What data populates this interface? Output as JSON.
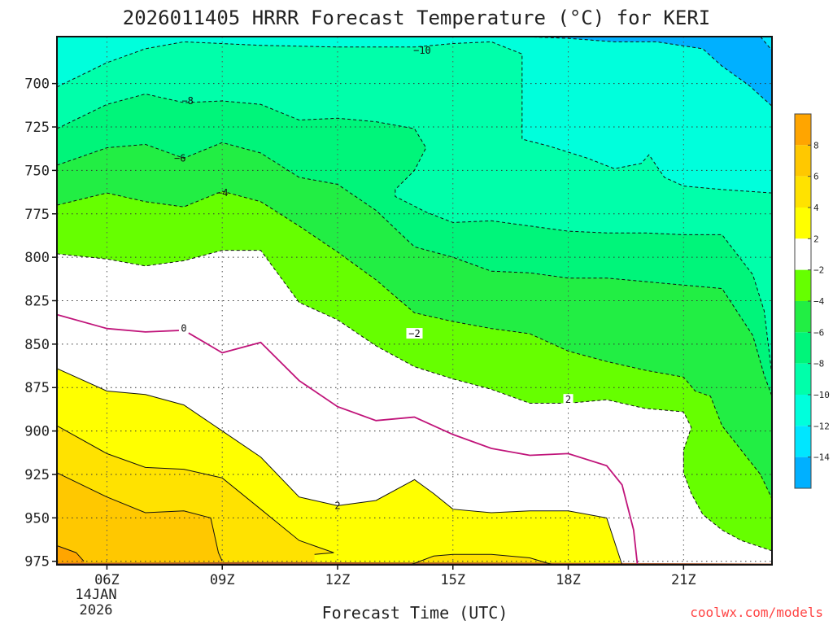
{
  "chart_data": {
    "type": "contour",
    "title": "2026011405 HRRR Forecast Temperature (°C) for KERI",
    "xlabel": "Forecast Time (UTC)",
    "ylabel": "",
    "credit": "coolwx.com/models",
    "x_axis": {
      "range_hours_utc": [
        4.7,
        23.3
      ],
      "ticks": [
        {
          "hour": 6,
          "label": "06Z"
        },
        {
          "hour": 9,
          "label": "09Z"
        },
        {
          "hour": 12,
          "label": "12Z"
        },
        {
          "hour": 15,
          "label": "15Z"
        },
        {
          "hour": 18,
          "label": "18Z"
        },
        {
          "hour": 21,
          "label": "21Z"
        }
      ],
      "date_labels": [
        "14JAN",
        "2026"
      ]
    },
    "y_axis": {
      "label": "",
      "inverted": true,
      "range_hpa": [
        977,
        673
      ],
      "ticks": [
        700,
        725,
        750,
        775,
        800,
        825,
        850,
        875,
        900,
        925,
        950,
        975
      ]
    },
    "grid": true,
    "ground_color": "#a0522d",
    "colorbar": {
      "position": "right",
      "bins": [
        {
          "min": -16,
          "max": -14,
          "color": "#00b0ff"
        },
        {
          "min": -14,
          "max": -12,
          "color": "#00e6ff"
        },
        {
          "min": -12,
          "max": -10,
          "color": "#00ffdc"
        },
        {
          "min": -10,
          "max": -8,
          "color": "#00ffaa"
        },
        {
          "min": -8,
          "max": -6,
          "color": "#00f57a"
        },
        {
          "min": -6,
          "max": -4,
          "color": "#22ee44"
        },
        {
          "min": -4,
          "max": -2,
          "color": "#66ff00"
        },
        {
          "min": -2,
          "max": 2,
          "color": "#ffffff"
        },
        {
          "min": 2,
          "max": 4,
          "color": "#ffff00"
        },
        {
          "min": 4,
          "max": 6,
          "color": "#ffe200"
        },
        {
          "min": 6,
          "max": 8,
          "color": "#ffc800"
        },
        {
          "min": 8,
          "max": 10,
          "color": "#ffa500"
        }
      ],
      "tick_labels": [
        "8",
        "6",
        "4",
        "2",
        "−2",
        "−4",
        "−6",
        "−8",
        "−10",
        "−12",
        "−14"
      ]
    },
    "contours": [
      {
        "level": -10,
        "label": "−10",
        "color": "#111111",
        "style": "dashed",
        "label_at": {
          "hour": 14.2,
          "hpa": 681
        },
        "points": [
          [
            4.7,
            702
          ],
          [
            6,
            688
          ],
          [
            7,
            680
          ],
          [
            8,
            676
          ],
          [
            10,
            678
          ],
          [
            12,
            679
          ],
          [
            14,
            679
          ],
          [
            15,
            677
          ],
          [
            16,
            676
          ],
          [
            16.8,
            683
          ],
          [
            16.8,
            732
          ],
          [
            17.5,
            736
          ],
          [
            18.5,
            743
          ],
          [
            19.2,
            749
          ],
          [
            19.9,
            746
          ],
          [
            20.1,
            741
          ],
          [
            20.5,
            754
          ],
          [
            21,
            759
          ],
          [
            22,
            761
          ],
          [
            23.3,
            763
          ]
        ]
      },
      {
        "level": -14,
        "label": "",
        "color": "#111111",
        "style": "dashed",
        "label_at": null,
        "points": [
          [
            16.8,
            673
          ],
          [
            18,
            674
          ],
          [
            19.2,
            676
          ],
          [
            20.3,
            676
          ],
          [
            21.5,
            680
          ],
          [
            22,
            690
          ],
          [
            22.7,
            701
          ],
          [
            23.3,
            713
          ]
        ]
      },
      {
        "level": -12,
        "label": "",
        "color": "#111111",
        "style": "dashed",
        "label_at": null,
        "points": [
          [
            23,
            673
          ],
          [
            23.3,
            681
          ]
        ]
      },
      {
        "level": -8,
        "label": "−8",
        "color": "#111111",
        "style": "dashed",
        "label_at": {
          "hour": 8.1,
          "hpa": 710
        },
        "points": [
          [
            4.7,
            726
          ],
          [
            6,
            712
          ],
          [
            7,
            706
          ],
          [
            8,
            711
          ],
          [
            9,
            710
          ],
          [
            10,
            712
          ],
          [
            11,
            721
          ],
          [
            12,
            720
          ],
          [
            13,
            722
          ],
          [
            14,
            726
          ],
          [
            14.3,
            737
          ],
          [
            14,
            750
          ],
          [
            13.5,
            761
          ],
          [
            13.5,
            765
          ],
          [
            14.3,
            774
          ],
          [
            15,
            780
          ],
          [
            16,
            779
          ],
          [
            17,
            782
          ],
          [
            18,
            785
          ],
          [
            19,
            786
          ],
          [
            20,
            786
          ],
          [
            21,
            787
          ],
          [
            22,
            787
          ],
          [
            22.8,
            810
          ],
          [
            23.1,
            831
          ],
          [
            23.3,
            868
          ]
        ]
      },
      {
        "level": -6,
        "label": "−6",
        "color": "#111111",
        "style": "dashed",
        "label_at": {
          "hour": 7.9,
          "hpa": 743
        },
        "points": [
          [
            4.7,
            747
          ],
          [
            6,
            737
          ],
          [
            7,
            735
          ],
          [
            8,
            743
          ],
          [
            9,
            734
          ],
          [
            10,
            740
          ],
          [
            11,
            754
          ],
          [
            12,
            758
          ],
          [
            13,
            773
          ],
          [
            14,
            794
          ],
          [
            15,
            800
          ],
          [
            16,
            808
          ],
          [
            17,
            809
          ],
          [
            18,
            812
          ],
          [
            19,
            812
          ],
          [
            20,
            814
          ],
          [
            21,
            816
          ],
          [
            22,
            818
          ],
          [
            22.8,
            845
          ],
          [
            23.1,
            868
          ],
          [
            23.3,
            880
          ]
        ]
      },
      {
        "level": -4,
        "label": "−4",
        "color": "#111111",
        "style": "dashed",
        "label_at": {
          "hour": 9,
          "hpa": 763
        },
        "points": [
          [
            4.7,
            770
          ],
          [
            6,
            763
          ],
          [
            7,
            768
          ],
          [
            8,
            771
          ],
          [
            9,
            762
          ],
          [
            10,
            768
          ],
          [
            11,
            782
          ],
          [
            12,
            797
          ],
          [
            13,
            813
          ],
          [
            14,
            832
          ],
          [
            15,
            837
          ],
          [
            16,
            841
          ],
          [
            17,
            844
          ],
          [
            18,
            854
          ],
          [
            19,
            860
          ],
          [
            20,
            865
          ],
          [
            21,
            869
          ],
          [
            21.3,
            877
          ],
          [
            21.7,
            880
          ],
          [
            22,
            897
          ],
          [
            22.5,
            911
          ],
          [
            23,
            925
          ],
          [
            23.3,
            939
          ]
        ]
      },
      {
        "level": -2,
        "label": "−2",
        "color": "#111111",
        "style": "dashed",
        "label_at": {
          "hour": 14,
          "hpa": 844
        },
        "points": [
          [
            4.7,
            798
          ],
          [
            6,
            801
          ],
          [
            7,
            805
          ],
          [
            8,
            802
          ],
          [
            9,
            796
          ],
          [
            10,
            796
          ],
          [
            11,
            826
          ],
          [
            12,
            836
          ],
          [
            13,
            851
          ],
          [
            14,
            863
          ],
          [
            15,
            870
          ],
          [
            16,
            876
          ],
          [
            17,
            884
          ],
          [
            18,
            884
          ],
          [
            19,
            882
          ],
          [
            20,
            887
          ],
          [
            21,
            889
          ],
          [
            21.2,
            898
          ],
          [
            21,
            911
          ],
          [
            21,
            924
          ],
          [
            21.2,
            936
          ],
          [
            21.5,
            948
          ],
          [
            22,
            957
          ],
          [
            22.5,
            963
          ],
          [
            23.3,
            969
          ]
        ]
      },
      {
        "level": 2,
        "label": "2",
        "color": "#111111",
        "style": "solid",
        "label_at": {
          "hour": 18,
          "hpa": 882
        },
        "points": [
          [
            23.3,
            977
          ]
        ]
      },
      {
        "level": 0,
        "label": "0",
        "color": "#c0147a",
        "style": "solid",
        "label_at": {
          "hour": 8,
          "hpa": 841
        },
        "points": [
          [
            4.7,
            833
          ],
          [
            6,
            841
          ],
          [
            7,
            843
          ],
          [
            8,
            842
          ],
          [
            9,
            855
          ],
          [
            10,
            849
          ],
          [
            11,
            871
          ],
          [
            12,
            886
          ],
          [
            13,
            894
          ],
          [
            14,
            892
          ],
          [
            15,
            902
          ],
          [
            16,
            910
          ],
          [
            17,
            914
          ],
          [
            18,
            913
          ],
          [
            19,
            920
          ],
          [
            19.4,
            931
          ],
          [
            19.7,
            957
          ],
          [
            19.8,
            977
          ]
        ]
      },
      {
        "level": 2,
        "label": "2",
        "color": "#111111",
        "style": "solid",
        "label_at": {
          "hour": 12,
          "hpa": 943
        },
        "points": [
          [
            4.7,
            864
          ],
          [
            6,
            877
          ],
          [
            7,
            879
          ],
          [
            8,
            885
          ],
          [
            9,
            900
          ],
          [
            10,
            915
          ],
          [
            11,
            938
          ],
          [
            12,
            943
          ],
          [
            13,
            940
          ],
          [
            14,
            928
          ],
          [
            14.5,
            936
          ],
          [
            15,
            945
          ],
          [
            16,
            947
          ],
          [
            17,
            946
          ],
          [
            18,
            946
          ],
          [
            19,
            950
          ],
          [
            19.4,
            977
          ]
        ]
      },
      {
        "level": 4,
        "label": "",
        "color": "#111111",
        "style": "solid",
        "label_at": null,
        "points": [
          [
            4.7,
            897
          ],
          [
            6,
            913
          ],
          [
            7,
            921
          ],
          [
            8,
            922
          ],
          [
            9,
            927
          ],
          [
            10,
            945
          ],
          [
            11,
            963
          ],
          [
            11.9,
            970
          ],
          [
            11.4,
            971
          ]
        ]
      },
      {
        "level": 6,
        "label": "",
        "color": "#111111",
        "style": "solid",
        "label_at": null,
        "points": [
          [
            4.7,
            924
          ],
          [
            6,
            938
          ],
          [
            7,
            947
          ],
          [
            8,
            946
          ],
          [
            8.7,
            950
          ],
          [
            8.9,
            970
          ],
          [
            9,
            975
          ]
        ]
      },
      {
        "level": 8,
        "label": "",
        "color": "#111111",
        "style": "solid",
        "label_at": null,
        "points": [
          [
            4.7,
            966
          ],
          [
            5.2,
            970
          ],
          [
            5.4,
            975
          ]
        ]
      },
      {
        "level": 4,
        "label": "",
        "color": "#111111",
        "style": "solid",
        "label_at": null,
        "points": [
          [
            13.9,
            977
          ],
          [
            14.5,
            972
          ],
          [
            15,
            971
          ],
          [
            16,
            971
          ],
          [
            17,
            973
          ],
          [
            17.6,
            977
          ]
        ]
      }
    ],
    "fill_regions": [
      {
        "bin_index": 0,
        "points": [
          [
            16.8,
            673
          ],
          [
            18,
            674
          ],
          [
            19.2,
            676
          ],
          [
            20.3,
            676
          ],
          [
            21.5,
            680
          ],
          [
            22,
            690
          ],
          [
            22.7,
            701
          ],
          [
            23.3,
            713
          ],
          [
            23.3,
            673
          ]
        ]
      },
      {
        "bin_index": 1,
        "points": [
          [
            23,
            673
          ],
          [
            23.3,
            681
          ],
          [
            23.3,
            673
          ]
        ]
      }
    ]
  }
}
